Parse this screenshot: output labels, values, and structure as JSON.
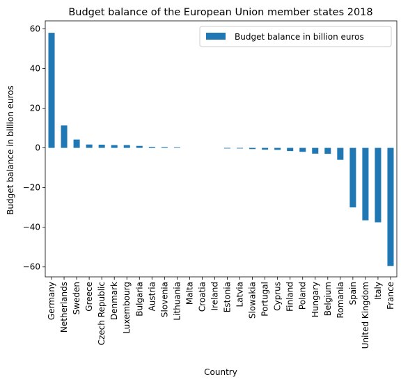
{
  "chart_data": {
    "type": "bar",
    "title": "Budget balance of the European Union member states 2018",
    "xlabel": "Country",
    "ylabel": "Budget balance in billion euros",
    "ylim": [
      -65,
      64
    ],
    "yticks": [
      -60,
      -40,
      -20,
      0,
      20,
      40,
      60
    ],
    "grid": false,
    "legend_position": "top-right",
    "bar_color": "#1f77b4",
    "categories": [
      "Germany",
      "Netherlands",
      "Sweden",
      "Greece",
      "Czech Republic",
      "Denmark",
      "Luxembourg",
      "Bulgaria",
      "Austria",
      "Slovenia",
      "Lithuania",
      "Malta",
      "Croatia",
      "Ireland",
      "Estonia",
      "Latvia",
      "Slowakia",
      "Portugal",
      "Cyprus",
      "Finland",
      "Poland",
      "Hungary",
      "Belgium",
      "Romania",
      "Spain",
      "United Kingdom",
      "Italy",
      "France"
    ],
    "series": [
      {
        "name": "Budget balance in billion euros",
        "values": [
          58.0,
          11.3,
          4.2,
          1.7,
          1.6,
          1.4,
          1.4,
          1.0,
          0.5,
          0.4,
          0.3,
          0.0,
          0.0,
          0.0,
          -0.3,
          -0.3,
          -0.6,
          -0.9,
          -1.0,
          -1.6,
          -2.0,
          -2.9,
          -3.0,
          -6.0,
          -30.0,
          -36.5,
          -37.5,
          -59.5
        ]
      }
    ]
  }
}
